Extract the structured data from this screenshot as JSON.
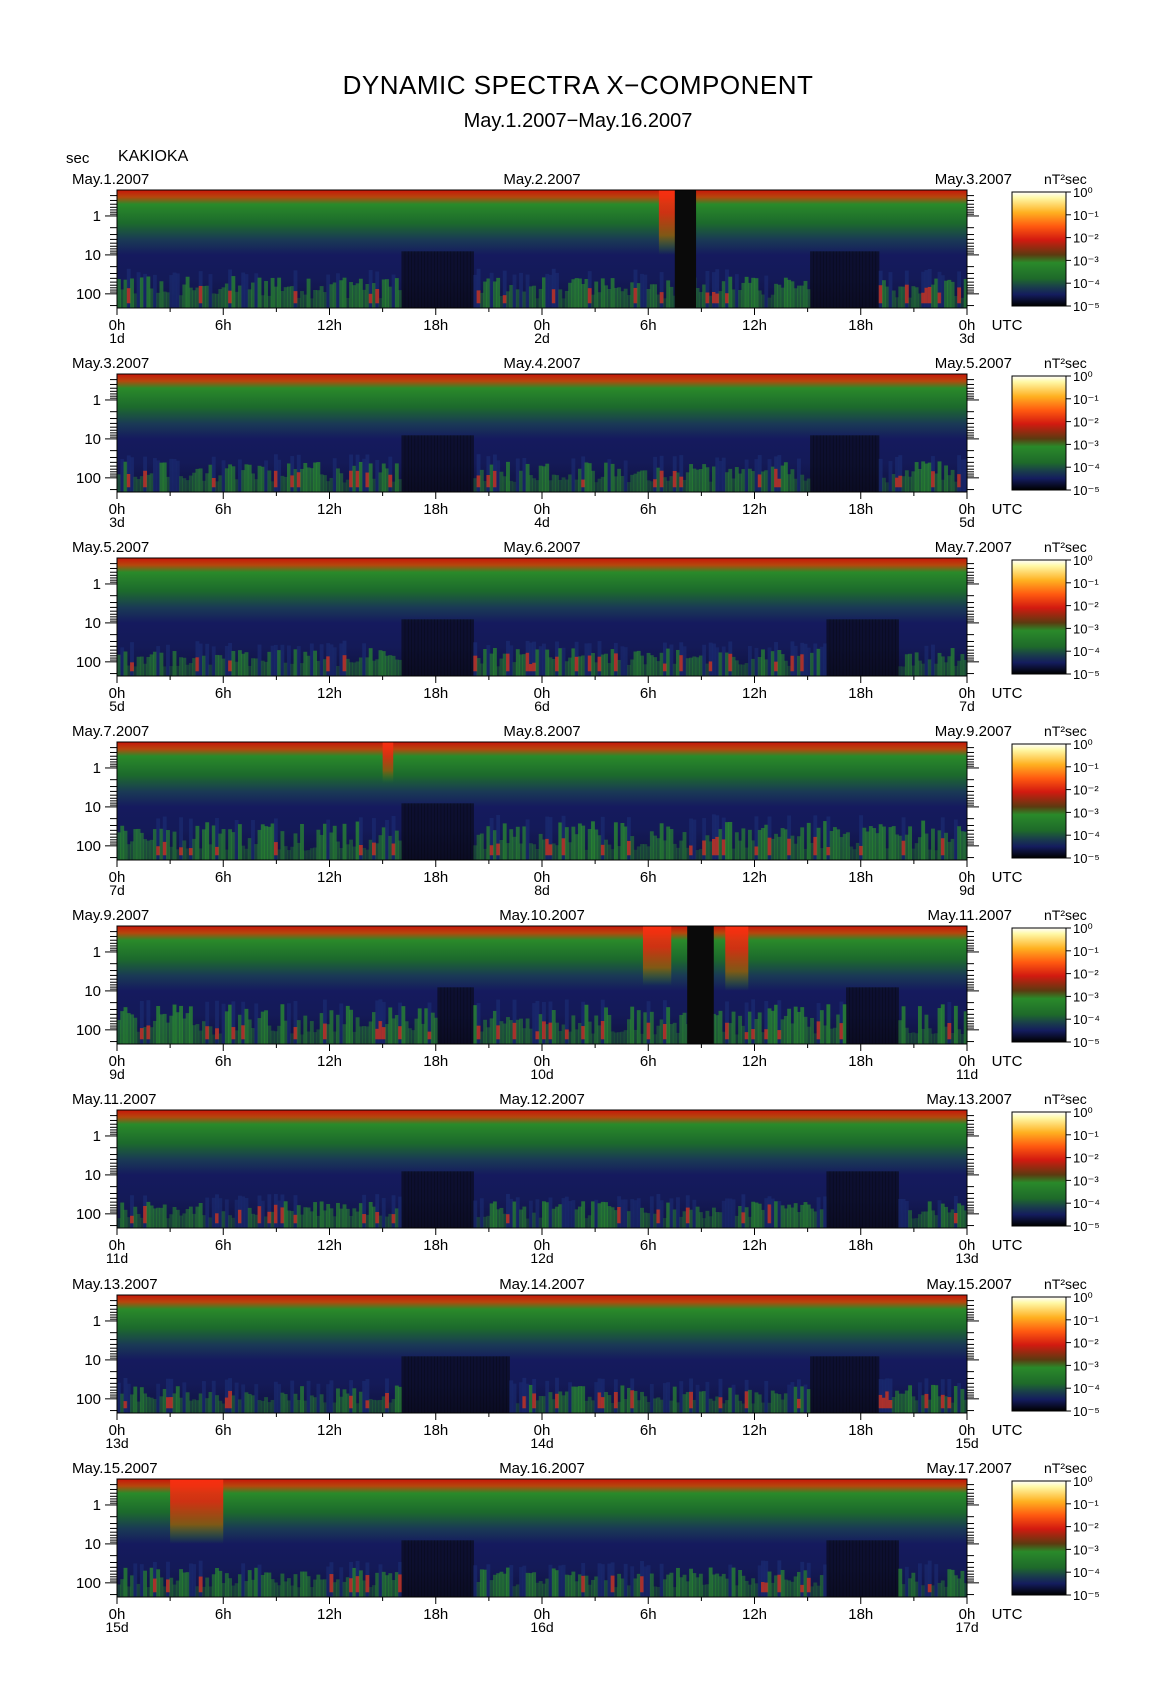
{
  "title": "DYNAMIC SPECTRA X−COMPONENT",
  "subtitle": "May.1.2007−May.16.2007",
  "y_unit": "sec",
  "station": "KAKIOKA",
  "colorbar_unit": "nT²sec",
  "colors": {
    "dark": "#0b0b10",
    "blue": "#1f2a6b",
    "green": "#1d7a2a",
    "red": "#d62a10",
    "orange": "#ff7a10",
    "yellow": "#fff27a"
  },
  "chart_data": {
    "type": "heatmap",
    "title": "DYNAMIC SPECTRA X−COMPONENT",
    "subtitle": "May.1.2007−May.16.2007",
    "station": "KAKIOKA",
    "y_axis": {
      "label": "sec",
      "scale": "log",
      "ticks": [
        "1",
        "10",
        "100"
      ]
    },
    "x_axis": {
      "unit": "UTC",
      "tick_labels": [
        "0h",
        "6h",
        "12h",
        "18h",
        "0h",
        "6h",
        "12h",
        "18h",
        "0h"
      ]
    },
    "colorbar": {
      "unit": "nT²sec",
      "scale": "log",
      "ticks": [
        "10⁰",
        "10⁻¹",
        "10⁻²",
        "10⁻³",
        "10⁻⁴",
        "10⁻⁵"
      ]
    },
    "panels": [
      {
        "left_date": "May.1.2007",
        "mid_date": "May.2.2007",
        "right_date": "May.3.2007",
        "day_start": "1d",
        "day_mid": "2d",
        "day_end": "3d",
        "gaps": [
          [
            31.5,
            32.7
          ]
        ],
        "bursts": [
          {
            "t": 31.2,
            "w": 1.2,
            "top": 1.0
          }
        ],
        "quiet": [
          [
            16,
            20
          ],
          [
            39,
            43
          ]
        ],
        "activity": 0.55
      },
      {
        "left_date": "May.3.2007",
        "mid_date": "May.4.2007",
        "right_date": "May.5.2007",
        "day_start": "3d",
        "day_mid": "4d",
        "day_end": "5d",
        "gaps": [],
        "bursts": [],
        "quiet": [
          [
            16,
            20
          ],
          [
            39,
            43
          ]
        ],
        "activity": 0.5
      },
      {
        "left_date": "May.5.2007",
        "mid_date": "May.6.2007",
        "right_date": "May.7.2007",
        "day_start": "5d",
        "day_mid": "6d",
        "day_end": "7d",
        "gaps": [],
        "bursts": [],
        "quiet": [
          [
            16,
            20
          ],
          [
            40,
            44
          ]
        ],
        "activity": 0.4
      },
      {
        "left_date": "May.7.2007",
        "mid_date": "May.8.2007",
        "right_date": "May.9.2007",
        "day_start": "7d",
        "day_mid": "8d",
        "day_end": "9d",
        "gaps": [],
        "bursts": [
          {
            "t": 15.3,
            "w": 0.6,
            "top": 0.55
          }
        ],
        "quiet": [
          [
            16,
            20
          ]
        ],
        "activity": 0.8
      },
      {
        "left_date": "May.9.2007",
        "mid_date": "May.10.2007",
        "right_date": "May.11.2007",
        "day_start": "9d",
        "day_mid": "10d",
        "day_end": "11d",
        "gaps": [
          [
            32.2,
            33.7
          ]
        ],
        "bursts": [
          {
            "t": 30.5,
            "w": 1.6,
            "top": 0.9
          },
          {
            "t": 35.0,
            "w": 1.3,
            "top": 1.0
          }
        ],
        "quiet": [
          [
            18,
            20
          ],
          [
            41,
            44
          ]
        ],
        "activity": 0.8
      },
      {
        "left_date": "May.11.2007",
        "mid_date": "May.12.2007",
        "right_date": "May.13.2007",
        "day_start": "11d",
        "day_mid": "12d",
        "day_end": "13d",
        "gaps": [],
        "bursts": [],
        "quiet": [
          [
            16,
            20
          ],
          [
            40,
            44
          ]
        ],
        "activity": 0.35
      },
      {
        "left_date": "May.13.2007",
        "mid_date": "May.14.2007",
        "right_date": "May.15.2007",
        "day_start": "13d",
        "day_mid": "14d",
        "day_end": "15d",
        "gaps": [],
        "bursts": [],
        "quiet": [
          [
            16,
            22
          ],
          [
            39,
            43
          ]
        ],
        "activity": 0.4
      },
      {
        "left_date": "May.15.2007",
        "mid_date": "May.16.2007",
        "right_date": "May.17.2007",
        "day_start": "15d",
        "day_mid": "16d",
        "day_end": "17d",
        "gaps": [],
        "bursts": [
          {
            "t": 4.5,
            "w": 3.0,
            "top": 1.0
          }
        ],
        "quiet": [
          [
            16,
            20
          ],
          [
            40,
            44
          ]
        ],
        "activity": 0.45
      }
    ]
  }
}
